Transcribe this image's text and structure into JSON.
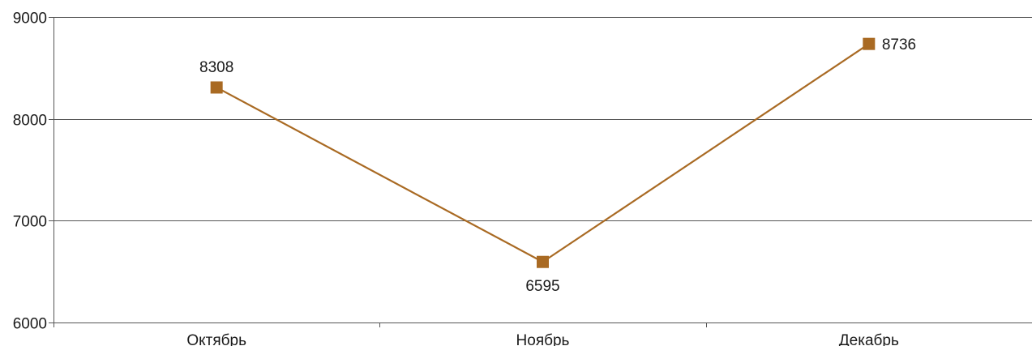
{
  "chart_data": {
    "type": "line",
    "categories": [
      "Октябрь",
      "Ноябрь",
      "Декабрь"
    ],
    "series": [
      {
        "values": [
          8308,
          6595,
          8736
        ],
        "color": "#a96a23",
        "marker": "square"
      }
    ],
    "ylim": [
      6000,
      9000
    ],
    "yticks": [
      6000,
      7000,
      8000,
      9000
    ],
    "ytick_labels": [
      "6000",
      "7000",
      "8000",
      "9000"
    ],
    "data_labels": [
      "8308",
      "6595",
      "8736"
    ],
    "grid": true,
    "gridline_color": "#555555",
    "title": "",
    "xlabel": "",
    "ylabel": ""
  }
}
